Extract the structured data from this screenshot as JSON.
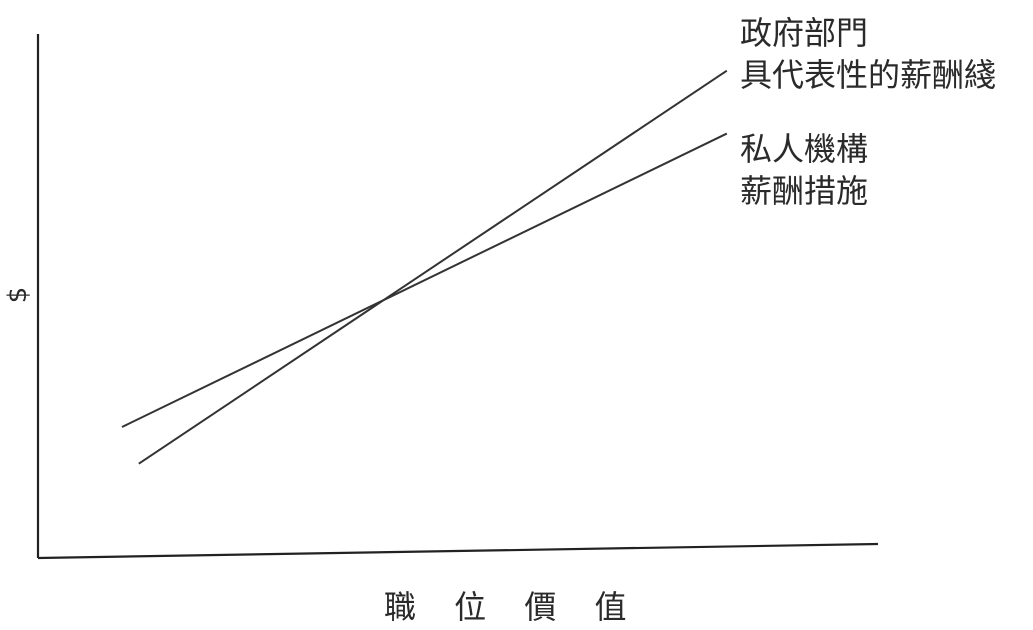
{
  "chart_data": {
    "type": "line",
    "title": "",
    "xlabel": "職 位 價 值",
    "ylabel": "$",
    "xlim": [
      0,
      100
    ],
    "ylim": [
      0,
      100
    ],
    "grid": false,
    "series": [
      {
        "name_lines": [
          "政府部門",
          "具代表性的薪酬綫"
        ],
        "color": "#333333",
        "x": [
          12,
          82
        ],
        "y": [
          18,
          93
        ]
      },
      {
        "name_lines": [
          "私人機構",
          "薪酬措施"
        ],
        "color": "#333333",
        "x": [
          10,
          82
        ],
        "y": [
          25,
          81
        ]
      }
    ]
  }
}
